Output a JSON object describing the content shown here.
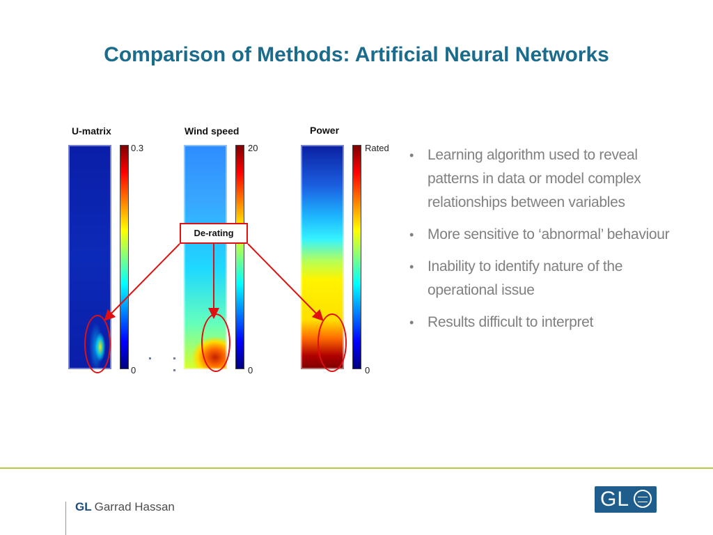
{
  "title": "Comparison of Methods: Artificial Neural Networks",
  "figure": {
    "panels": [
      {
        "title": "U-matrix",
        "scale_max": "0.3",
        "scale_min": "0"
      },
      {
        "title": "Wind speed",
        "scale_max": "20",
        "scale_min": "0"
      },
      {
        "title": "Power",
        "scale_max": "Rated",
        "scale_min": "0"
      }
    ],
    "callout": "De-rating",
    "colors": {
      "highlight": "#e01010"
    }
  },
  "bullets": [
    "Learning algorithm used to reveal patterns in data or model complex relationships between variables",
    "More sensitive to ‘abnormal’ behaviour",
    "Inability to identify nature of the operational issue",
    "Results difficult to interpret"
  ],
  "footer": {
    "brand_bold": "GL",
    "brand_text": "Garrad Hassan",
    "logo_text": "GL",
    "colors": {
      "line": "#b9cc3f",
      "logo_bg": "#1f5e8c"
    }
  }
}
